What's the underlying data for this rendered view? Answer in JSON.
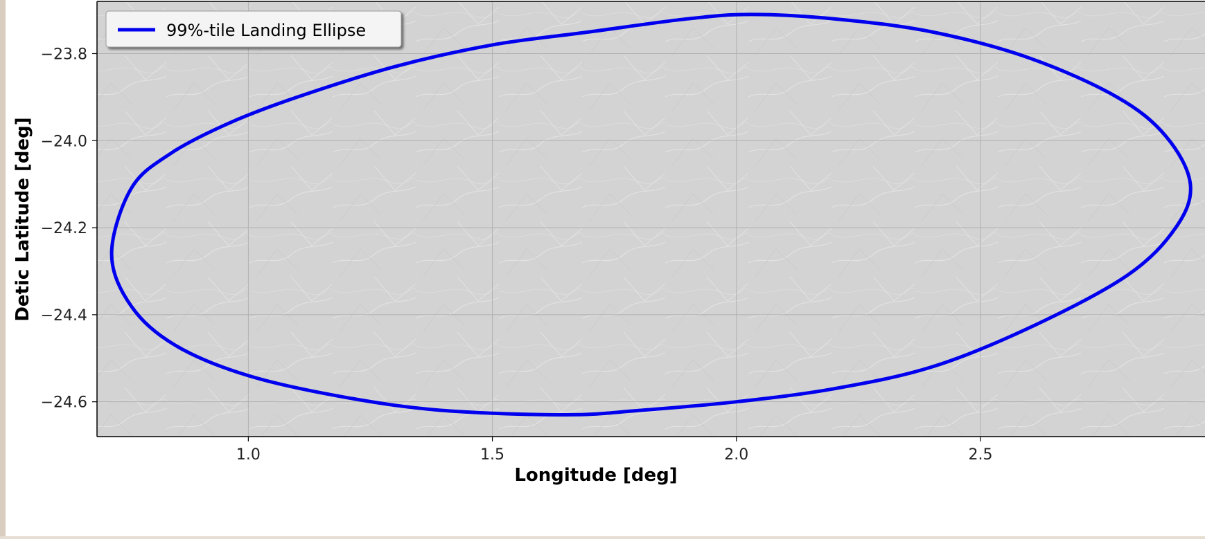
{
  "chart_data": {
    "type": "line",
    "title": "",
    "xlabel": "Longitude [deg]",
    "ylabel": "Detic Latitude [deg]",
    "xlim": [
      0.69,
      2.96
    ],
    "ylim": [
      -24.68,
      -23.68
    ],
    "xticks": [
      1.0,
      1.5,
      2.0,
      2.5
    ],
    "xtick_labels": [
      "1.0",
      "1.5",
      "2.0",
      "2.5"
    ],
    "yticks": [
      -23.8,
      -24.0,
      -24.2,
      -24.4,
      -24.6
    ],
    "ytick_labels": [
      "−23.8",
      "−24.0",
      "−24.2",
      "−24.4",
      "−24.6"
    ],
    "grid": true,
    "legend_position": "upper left",
    "background": "grey planetary terrain image",
    "series": [
      {
        "name": "99%-tile Landing Ellipse",
        "color": "#0000ee",
        "points": [
          [
            0.72,
            -24.26
          ],
          [
            0.76,
            -24.11
          ],
          [
            0.84,
            -24.03
          ],
          [
            0.96,
            -23.96
          ],
          [
            1.1,
            -23.9
          ],
          [
            1.3,
            -23.83
          ],
          [
            1.5,
            -23.78
          ],
          [
            1.7,
            -23.75
          ],
          [
            1.9,
            -23.72
          ],
          [
            2.03,
            -23.71
          ],
          [
            2.2,
            -23.72
          ],
          [
            2.4,
            -23.75
          ],
          [
            2.6,
            -23.81
          ],
          [
            2.78,
            -23.9
          ],
          [
            2.88,
            -23.99
          ],
          [
            2.93,
            -24.1
          ],
          [
            2.9,
            -24.2
          ],
          [
            2.8,
            -24.31
          ],
          [
            2.6,
            -24.43
          ],
          [
            2.4,
            -24.52
          ],
          [
            2.2,
            -24.57
          ],
          [
            2.0,
            -24.6
          ],
          [
            1.8,
            -24.62
          ],
          [
            1.65,
            -24.63
          ],
          [
            1.4,
            -24.62
          ],
          [
            1.2,
            -24.59
          ],
          [
            1.0,
            -24.54
          ],
          [
            0.85,
            -24.47
          ],
          [
            0.76,
            -24.38
          ],
          [
            0.72,
            -24.26
          ]
        ]
      }
    ]
  }
}
